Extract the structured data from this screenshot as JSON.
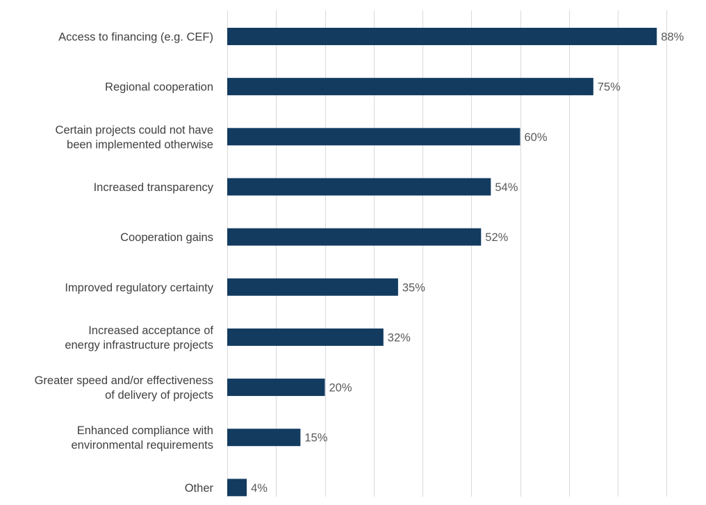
{
  "chart_data": {
    "type": "bar",
    "orientation": "horizontal",
    "categories": [
      "Access to financing (e.g. CEF)",
      "Regional cooperation",
      "Certain projects could not have been implemented otherwise",
      "Increased transparency",
      "Cooperation gains",
      "Improved regulatory certainty",
      "Increased acceptance of energy infrastructure projects",
      "Greater speed and/or effectiveness of delivery of projects",
      "Enhanced compliance with environmental requirements",
      "Other"
    ],
    "category_lines": [
      [
        "Access to financing (e.g. CEF)"
      ],
      [
        "Regional cooperation"
      ],
      [
        "Certain projects could not have",
        "been implemented otherwise"
      ],
      [
        "Increased transparency"
      ],
      [
        "Cooperation gains"
      ],
      [
        "Improved regulatory certainty"
      ],
      [
        "Increased acceptance of",
        "energy infrastructure projects"
      ],
      [
        "Greater speed and/or effectiveness",
        "of delivery of projects"
      ],
      [
        "Enhanced compliance with",
        "environmental requirements"
      ],
      [
        "Other"
      ]
    ],
    "values": [
      88,
      75,
      60,
      54,
      52,
      35,
      32,
      20,
      15,
      4
    ],
    "data_labels": [
      "88%",
      "75%",
      "60%",
      "54%",
      "52%",
      "35%",
      "32%",
      "20%",
      "15%",
      "4%"
    ],
    "unit": "%",
    "xlim": [
      0,
      90
    ],
    "x_gridline_step": 10,
    "grid": "vertical",
    "legend": "none",
    "title": "",
    "xlabel": "",
    "ylabel": "",
    "colors": {
      "bar": "#133b60",
      "grid": "#d9d9d9",
      "label_text": "#404040",
      "value_text": "#595959"
    }
  }
}
